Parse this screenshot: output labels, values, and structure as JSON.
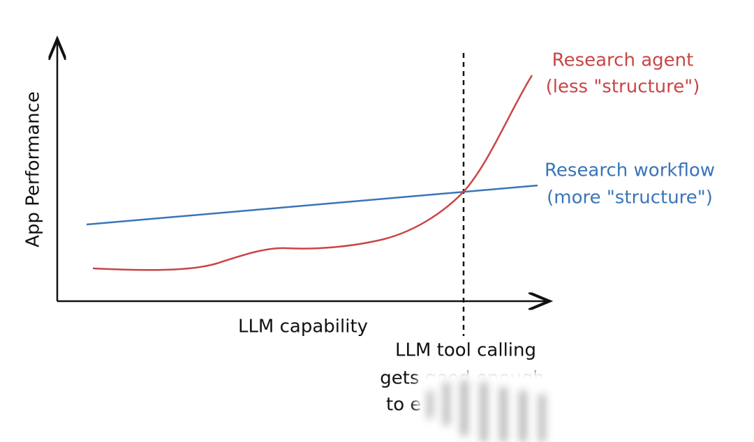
{
  "axes": {
    "y_label": "App Performance",
    "x_label": "LLM capability"
  },
  "curves": [
    {
      "label": [
        "Research agent",
        "(less \"structure\")"
      ]
    },
    {
      "label": [
        "Research workflow",
        "(more \"structure\")"
      ]
    }
  ],
  "marker": {
    "label": [
      "LLM tool calling",
      "gets good enough",
      "to e"
    ]
  }
}
